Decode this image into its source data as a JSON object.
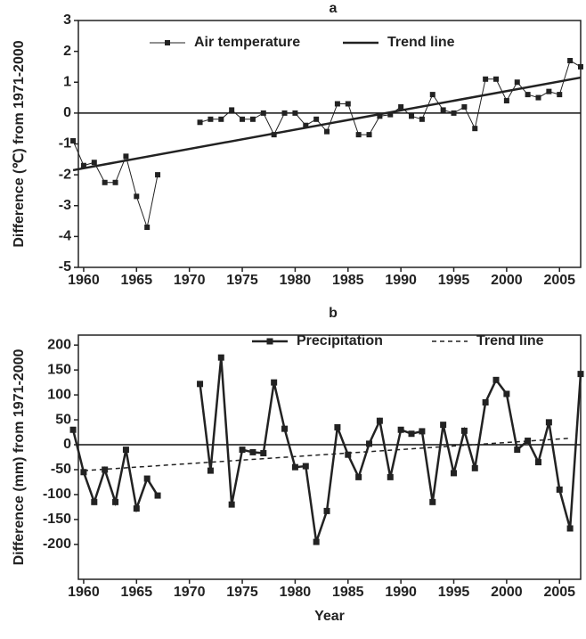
{
  "chart_data": [
    {
      "type": "line",
      "title": "a",
      "ylabel": "Difference (℃) from 1971-2000",
      "x": [
        1959,
        1960,
        1961,
        1962,
        1963,
        1964,
        1965,
        1966,
        1967,
        1968,
        1969,
        1970,
        1971,
        1972,
        1973,
        1974,
        1975,
        1976,
        1977,
        1978,
        1979,
        1980,
        1981,
        1982,
        1983,
        1984,
        1985,
        1986,
        1987,
        1988,
        1989,
        1990,
        1991,
        1992,
        1993,
        1994,
        1995,
        1996,
        1997,
        1998,
        1999,
        2000,
        2001,
        2002,
        2003,
        2004,
        2005,
        2006,
        2007
      ],
      "xlim": [
        1959.5,
        2007
      ],
      "xticks": [
        1960,
        1965,
        1970,
        1975,
        1980,
        1985,
        1990,
        1995,
        2000,
        2005
      ],
      "ylim": [
        -5,
        3
      ],
      "yticks": [
        -5,
        -4,
        -3,
        -2,
        -1,
        0,
        1,
        2,
        3
      ],
      "legend": "top",
      "series": [
        {
          "name": "Air temperature",
          "color": "#222222",
          "marker": "square",
          "values": [
            -0.9,
            -1.7,
            -1.6,
            -2.25,
            -2.25,
            -1.4,
            -2.7,
            -3.7,
            -2.0,
            null,
            null,
            null,
            -0.3,
            -0.2,
            -0.2,
            0.1,
            -0.2,
            -0.2,
            0.0,
            -0.7,
            0.0,
            0.0,
            -0.4,
            -0.2,
            -0.6,
            0.3,
            0.3,
            -0.7,
            -0.7,
            -0.1,
            -0.05,
            0.2,
            -0.1,
            -0.2,
            0.6,
            0.1,
            0.0,
            0.2,
            -0.5,
            1.1,
            1.1,
            0.4,
            1.0,
            0.6,
            0.5,
            0.7,
            0.6,
            1.7,
            1.5
          ]
        },
        {
          "name": "Trend line",
          "color": "#222222",
          "line_style": "solid",
          "x": [
            1959,
            2007
          ],
          "values": [
            -1.85,
            1.15
          ]
        }
      ]
    },
    {
      "type": "line",
      "title": "b",
      "ylabel": "Difference (mm) from 1971-2000",
      "xlabel": "Year",
      "x": [
        1959,
        1960,
        1961,
        1962,
        1963,
        1964,
        1965,
        1966,
        1967,
        1968,
        1969,
        1970,
        1971,
        1972,
        1973,
        1974,
        1975,
        1976,
        1977,
        1978,
        1979,
        1980,
        1981,
        1982,
        1983,
        1984,
        1985,
        1986,
        1987,
        1988,
        1989,
        1990,
        1991,
        1992,
        1993,
        1994,
        1995,
        1996,
        1997,
        1998,
        1999,
        2000,
        2001,
        2002,
        2003,
        2004,
        2005,
        2006,
        2007
      ],
      "xlim": [
        1959.5,
        2007
      ],
      "xticks": [
        1960,
        1965,
        1970,
        1975,
        1980,
        1985,
        1990,
        1995,
        2000,
        2005
      ],
      "ylim": [
        -270,
        220
      ],
      "yticks": [
        -200,
        -150,
        -100,
        -50,
        0,
        50,
        100,
        150,
        200
      ],
      "legend": "top",
      "series": [
        {
          "name": "Precipitation",
          "color": "#222222",
          "marker": "square",
          "values": [
            30,
            -55,
            -115,
            -50,
            -115,
            -10,
            -128,
            -68,
            -102,
            null,
            null,
            null,
            122,
            -52,
            175,
            -120,
            -10,
            -15,
            -17,
            125,
            32,
            -45,
            -43,
            -195,
            -133,
            35,
            -20,
            -65,
            2,
            48,
            -65,
            30,
            22,
            27,
            -115,
            40,
            -57,
            28,
            -47,
            85,
            130,
            102,
            -10,
            8,
            -35,
            45,
            -90,
            -168,
            142
          ]
        },
        {
          "name": "Trend line",
          "color": "#222222",
          "line_style": "dashed",
          "x": [
            1960,
            2006
          ],
          "values": [
            -52,
            13
          ]
        }
      ]
    }
  ]
}
